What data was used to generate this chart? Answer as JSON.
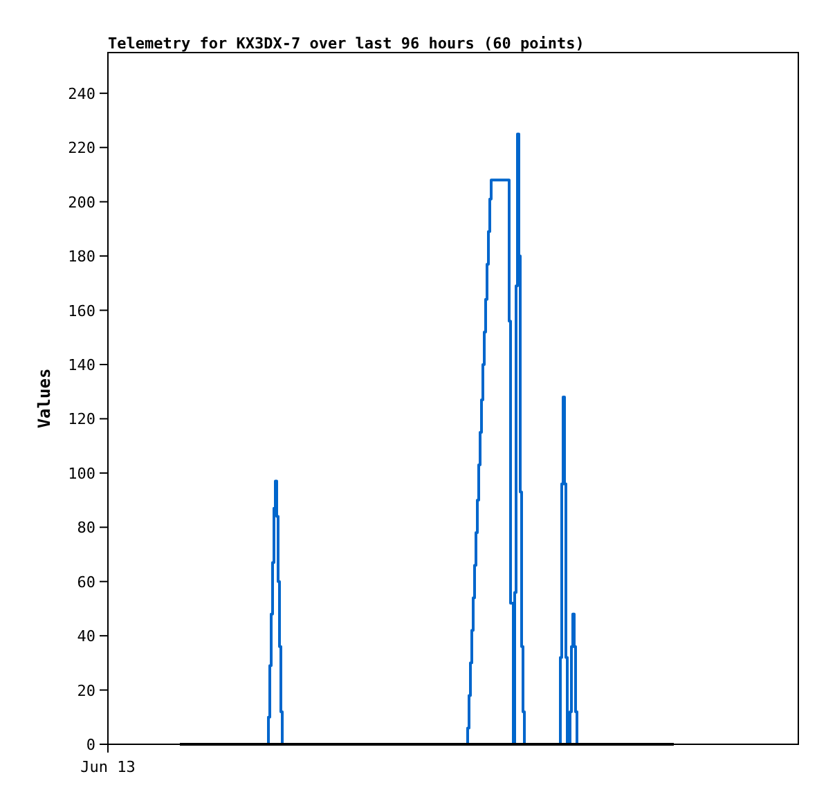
{
  "chart_data": {
    "type": "step",
    "title": "Telemetry for KX3DX-7 over last 96 hours (60 points)",
    "ylabel": "Values",
    "annotations": [
      "Jun 13"
    ],
    "ylim": [
      0,
      255
    ],
    "yticks": [
      0,
      20,
      40,
      60,
      80,
      100,
      120,
      140,
      160,
      180,
      200,
      220,
      240
    ],
    "grid": false,
    "categories": [
      null,
      null,
      null,
      null,
      null,
      null,
      null,
      null,
      null,
      null,
      null,
      null,
      null,
      null,
      null,
      null,
      null,
      null,
      null,
      null,
      null,
      null,
      null,
      null,
      null,
      null,
      null,
      null,
      null,
      null,
      null,
      null,
      null,
      null,
      null,
      null,
      null,
      null,
      null,
      null,
      null,
      null,
      null,
      null,
      null,
      null,
      null,
      null,
      null,
      null,
      null,
      null,
      null,
      null,
      null,
      null,
      null,
      null,
      null,
      null,
      null,
      null,
      null,
      null,
      null,
      null,
      null,
      null,
      null,
      null,
      null,
      null,
      null,
      null,
      null,
      null,
      null,
      null,
      null,
      null,
      null,
      null,
      null,
      null,
      null,
      null,
      null,
      null,
      null,
      null,
      null,
      null,
      null,
      null,
      null,
      null,
      null,
      null,
      null,
      null,
      null,
      null,
      null,
      null,
      null,
      null,
      null,
      null,
      null,
      null,
      null,
      null,
      null,
      null,
      null,
      null,
      null,
      null,
      null,
      null,
      null,
      null,
      null,
      null,
      null,
      null,
      null,
      null,
      null,
      null,
      null,
      null,
      null,
      null,
      null,
      null,
      null,
      null,
      null,
      null,
      null,
      null,
      null,
      null,
      null,
      null,
      null,
      null,
      null,
      null,
      null,
      null,
      null,
      null,
      null,
      null,
      null,
      null,
      null,
      null,
      null,
      null,
      null,
      null,
      null,
      null,
      null,
      null,
      null,
      null,
      null,
      null,
      null,
      null,
      null,
      null,
      null,
      null,
      null,
      null,
      null,
      null,
      null,
      null,
      null,
      null,
      null,
      null,
      null,
      null,
      null,
      null,
      null,
      null,
      null,
      null,
      null,
      null,
      null,
      null,
      null,
      null,
      null,
      null,
      null,
      null,
      null,
      null,
      null,
      null,
      null,
      null,
      null,
      null,
      null,
      null,
      null,
      null,
      null,
      null,
      null,
      null,
      null,
      null,
      null,
      null,
      null,
      null,
      null,
      null,
      null,
      null,
      null,
      null,
      null,
      null,
      null,
      null,
      null,
      null,
      null,
      null,
      null,
      null,
      null,
      null,
      null,
      null,
      null,
      null,
      null,
      null,
      null,
      null,
      null,
      null,
      null,
      null,
      null,
      null,
      null,
      null,
      null,
      null,
      null,
      null,
      null,
      null,
      null,
      null,
      null,
      null,
      null,
      null,
      null,
      null,
      null,
      null,
      null,
      null,
      null,
      null,
      null,
      null,
      null,
      null,
      null,
      null,
      null,
      null,
      null,
      null,
      null,
      null,
      null,
      null,
      null,
      null,
      null,
      null,
      null,
      null,
      null,
      null,
      null,
      null,
      null,
      null,
      null,
      null,
      null,
      null,
      null,
      null,
      null,
      null,
      null,
      null,
      null,
      null,
      null,
      null,
      null,
      null,
      null,
      null,
      null,
      null,
      null,
      null,
      null,
      null,
      null,
      null,
      null,
      null,
      null,
      null,
      null,
      null,
      null,
      null,
      null,
      null,
      null,
      null,
      null,
      null,
      null,
      null,
      null,
      null,
      null,
      null,
      null,
      null,
      null,
      null
    ],
    "series": [
      {
        "color": "#0066cc",
        "values": [
          null,
          null,
          null,
          null,
          null,
          null,
          null,
          null,
          null,
          null,
          null,
          null,
          null,
          null,
          null,
          null,
          null,
          null,
          null,
          null,
          null,
          null,
          null,
          null,
          null,
          null,
          null,
          null,
          null,
          null,
          null,
          null,
          null,
          null,
          null,
          null,
          null,
          null,
          null,
          null,
          null,
          null,
          null,
          null,
          null,
          null,
          null,
          null,
          null,
          null,
          null,
          null,
          null,
          null,
          null,
          null,
          null,
          null,
          null,
          null,
          null,
          null,
          null,
          0,
          10,
          29,
          48,
          67,
          87,
          97,
          84,
          60,
          36,
          12,
          0,
          null,
          null,
          null,
          null,
          null,
          null,
          null,
          null,
          null,
          null,
          null,
          null,
          null,
          null,
          null,
          null,
          null,
          null,
          null,
          null,
          null,
          null,
          null,
          null,
          null,
          null,
          null,
          null,
          null,
          null,
          null,
          null,
          null,
          null,
          null,
          null,
          null,
          null,
          null,
          null,
          null,
          null,
          null,
          null,
          null,
          null,
          null,
          null,
          null,
          null,
          null,
          null,
          null,
          null,
          null,
          null,
          null,
          null,
          null,
          null,
          null,
          null,
          null,
          null,
          null,
          null,
          null,
          null,
          null,
          null,
          null,
          null,
          null,
          null,
          null,
          null,
          null,
          null,
          null,
          null,
          null,
          null,
          null,
          null,
          null,
          null,
          null,
          null,
          null,
          null,
          null,
          null,
          null,
          null,
          null,
          null,
          null,
          null,
          null,
          null,
          null,
          null,
          null,
          null,
          null,
          null,
          null,
          null,
          null,
          null,
          null,
          null,
          null,
          null,
          null,
          null,
          null,
          null,
          null,
          null,
          null,
          null,
          null,
          null,
          null,
          null,
          null,
          null,
          null,
          null,
          null,
          null,
          0,
          6,
          18,
          30,
          42,
          54,
          66,
          78,
          90,
          103,
          115,
          127,
          140,
          152,
          164,
          177,
          189,
          201,
          208,
          208,
          208,
          208,
          208,
          208,
          208,
          208,
          208,
          208,
          208,
          208,
          208,
          156,
          52,
          52,
          0,
          56,
          169,
          225,
          180,
          93,
          36,
          12,
          0,
          null,
          null,
          null,
          null,
          null,
          null,
          null,
          null,
          null,
          null,
          null,
          null,
          null,
          null,
          null,
          null,
          null,
          null,
          null,
          null,
          null,
          null,
          null,
          null,
          0,
          32,
          96,
          128,
          96,
          32,
          0,
          0,
          12,
          36,
          48,
          36,
          12,
          0,
          null,
          null,
          null,
          null,
          null,
          null,
          null,
          null,
          null,
          null,
          null,
          null,
          null,
          null,
          null,
          null,
          null,
          null,
          null,
          null,
          null,
          null,
          null,
          null,
          null,
          null,
          null,
          null,
          null,
          null,
          null,
          null,
          null,
          null,
          null,
          null,
          null,
          null,
          null,
          null,
          null,
          null,
          null,
          null,
          null,
          null,
          null,
          null,
          null,
          null,
          null,
          null,
          null,
          null,
          null,
          null,
          null,
          null,
          null,
          null,
          null,
          null,
          null,
          null,
          null,
          null,
          null,
          null,
          null,
          null
        ]
      },
      {
        "color": "#000000",
        "values": [
          0,
          0,
          0,
          0,
          0,
          0,
          0,
          0,
          0,
          0,
          0,
          0,
          0,
          0,
          0,
          0,
          0,
          0,
          0,
          0,
          0,
          0,
          0,
          0,
          0,
          0,
          0,
          0,
          0,
          0,
          0,
          0,
          0,
          0,
          0,
          0,
          0,
          0,
          0,
          0,
          0,
          0,
          0,
          0,
          0,
          0,
          0,
          0,
          0,
          0,
          0,
          0,
          0,
          0,
          0,
          0,
          0,
          0,
          0,
          0,
          0,
          0,
          0,
          0,
          0,
          0,
          0,
          0,
          0,
          0,
          0,
          0,
          0,
          0,
          0,
          0,
          0,
          0,
          0,
          0,
          0,
          0,
          0,
          0,
          0,
          0,
          0,
          0,
          0,
          0,
          0,
          0,
          0,
          0,
          0,
          0,
          0,
          0,
          0,
          0,
          0,
          0,
          0,
          0,
          0,
          0,
          0,
          0,
          0,
          0,
          0,
          0,
          0,
          0,
          0,
          0,
          0,
          0,
          0,
          0,
          0,
          0,
          0,
          0,
          0,
          0,
          0,
          0,
          0,
          0,
          0,
          0,
          0,
          0,
          0,
          0,
          0,
          0,
          0,
          0,
          0,
          0,
          0,
          0,
          0,
          0,
          0,
          0,
          0,
          0,
          0,
          0,
          0,
          0,
          0,
          0,
          0,
          0,
          0,
          0,
          0,
          0,
          0,
          0,
          0,
          0,
          0,
          0,
          0,
          0,
          0,
          0,
          0,
          0,
          0,
          0,
          0,
          0,
          0,
          0,
          0,
          0,
          0,
          0,
          0,
          0,
          0,
          0,
          0,
          0,
          0,
          0,
          0,
          0,
          0,
          0,
          0,
          0,
          0,
          0,
          0,
          0,
          0,
          0,
          0,
          0,
          0,
          0,
          0,
          0,
          0,
          0,
          0,
          0,
          0,
          0,
          0,
          0,
          0,
          0,
          0,
          0,
          0,
          0,
          0,
          0,
          0,
          0,
          0,
          0,
          0,
          0,
          0,
          0,
          0,
          0,
          0,
          0,
          0,
          0,
          0,
          0,
          0,
          0,
          0,
          0,
          0,
          0,
          0,
          0,
          0,
          0,
          0,
          0,
          0,
          0,
          0,
          0,
          0,
          0,
          0,
          0,
          0,
          0,
          0,
          0,
          0,
          0,
          0,
          0,
          0,
          0,
          0,
          0,
          0,
          0,
          0,
          0,
          0,
          0,
          0,
          0,
          0,
          0,
          0,
          0,
          0,
          0,
          0,
          0,
          0,
          0,
          0,
          0,
          0,
          0,
          0,
          0,
          0,
          0,
          0,
          0,
          0,
          0,
          0,
          0,
          0,
          0,
          0,
          0,
          0,
          0,
          0,
          0,
          0,
          0,
          0,
          0,
          0,
          0,
          0,
          0,
          0,
          0,
          0,
          0,
          0,
          0,
          0,
          0,
          0,
          0,
          0,
          0,
          0,
          0,
          0,
          0,
          0,
          0,
          0,
          0,
          0,
          0,
          0,
          0,
          0,
          0,
          0,
          0,
          0,
          0,
          0,
          0,
          0,
          0,
          0,
          0
        ]
      }
    ]
  }
}
